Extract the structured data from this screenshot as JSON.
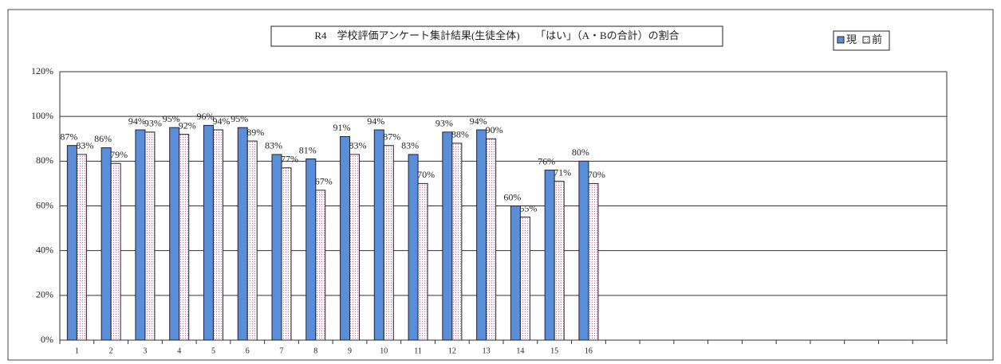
{
  "chart_data": {
    "type": "bar",
    "title": "R4　学校評価アンケート集計結果(生徒全体)　　「はい」（A・Bの合計）の割合",
    "categories": [
      "1",
      "2",
      "3",
      "4",
      "5",
      "6",
      "7",
      "8",
      "9",
      "10",
      "11",
      "12",
      "13",
      "14",
      "15",
      "16",
      null,
      null,
      null,
      null,
      null,
      null,
      null,
      null,
      null,
      null
    ],
    "series": [
      {
        "name": "現",
        "color": "#5b8ed8",
        "values": [
          87,
          86,
          94,
          95,
          96,
          95,
          83,
          81,
          91,
          94,
          83,
          93,
          94,
          60,
          76,
          80,
          null,
          null,
          null,
          null,
          null,
          null,
          null,
          null,
          null,
          null
        ],
        "value_labels": [
          "87%",
          "86%",
          "94%",
          "95%",
          "96%",
          "95%",
          "83%",
          "81%",
          "91%",
          "94%",
          "83%",
          "93%",
          "94%",
          "60%",
          "76%",
          "80%",
          null,
          null,
          null,
          null,
          null,
          null,
          null,
          null,
          null,
          null
        ]
      },
      {
        "name": "前",
        "color": "#f3d6ea",
        "values": [
          83,
          79,
          93,
          92,
          94,
          89,
          77,
          67,
          83,
          87,
          70,
          88,
          90,
          55,
          71,
          70,
          null,
          null,
          null,
          null,
          null,
          null,
          null,
          null,
          null,
          null
        ],
        "value_labels": [
          "83%",
          "79%",
          "93%",
          "92%",
          "94%",
          "89%",
          "77%",
          "67%",
          "83%",
          "87%",
          "70%",
          "88%",
          "90%",
          "55%",
          "71%",
          "70%",
          null,
          null,
          null,
          null,
          null,
          null,
          null,
          null,
          null,
          null
        ]
      }
    ],
    "ylim": [
      0,
      120
    ],
    "yticks": [
      {
        "value": 0,
        "label": "0%"
      },
      {
        "value": 20,
        "label": "20%"
      },
      {
        "value": 40,
        "label": "40%"
      },
      {
        "value": 60,
        "label": "60%"
      },
      {
        "value": 80,
        "label": "80%"
      },
      {
        "value": 100,
        "label": "100%"
      },
      {
        "value": 120,
        "label": "120%"
      }
    ],
    "grid": true,
    "legend": "top-right"
  }
}
